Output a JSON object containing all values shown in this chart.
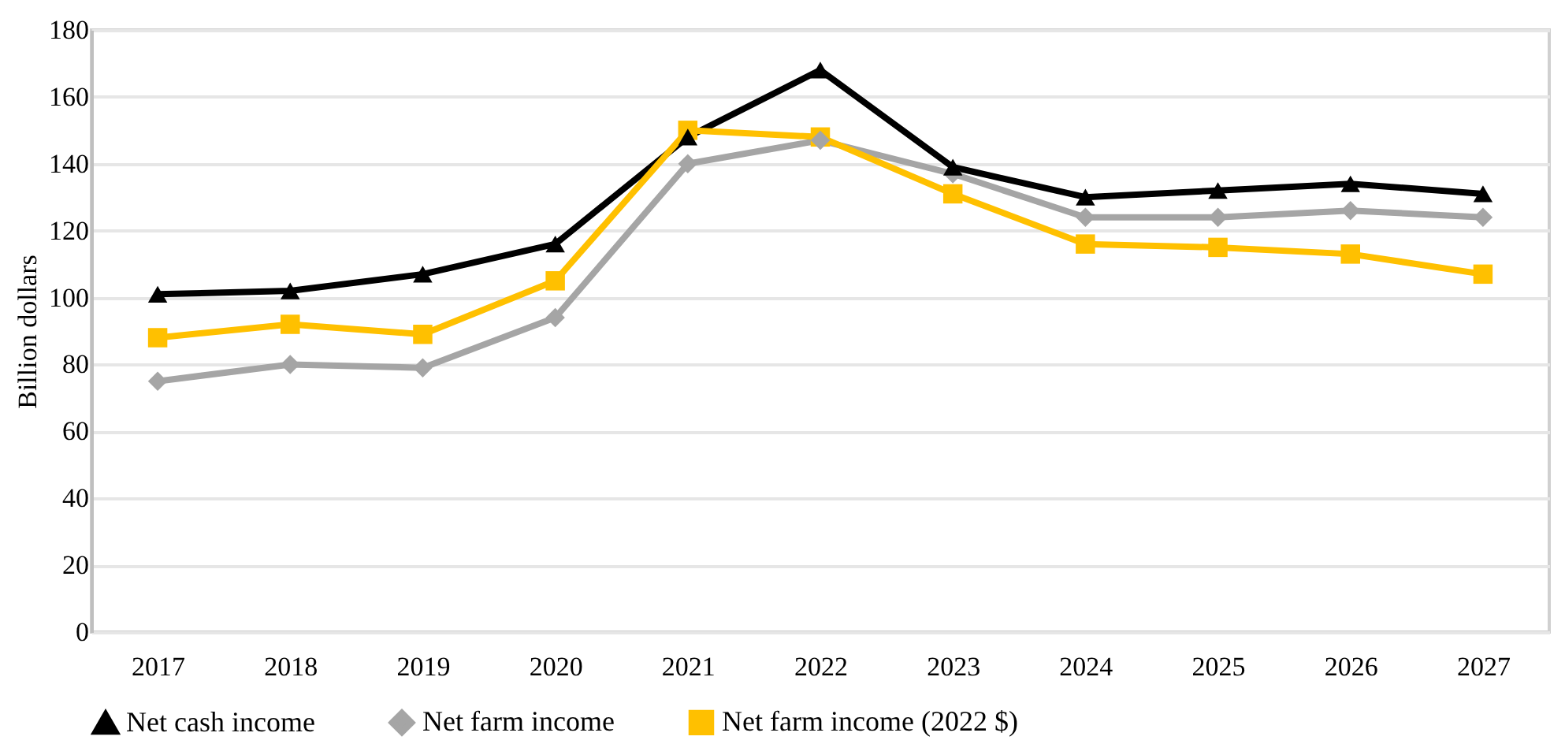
{
  "chart_data": {
    "type": "line",
    "ylabel": "Billion dollars",
    "categories": [
      "2017",
      "2018",
      "2019",
      "2020",
      "2021",
      "2022",
      "2023",
      "2024",
      "2025",
      "2026",
      "2027"
    ],
    "series": [
      {
        "name": "Net cash income",
        "color": "#000000",
        "marker": "triangle",
        "values": [
          101,
          102,
          107,
          116,
          148,
          168,
          139,
          130,
          132,
          134,
          131
        ]
      },
      {
        "name": "Net farm income",
        "color": "#a5a5a5",
        "marker": "diamond",
        "values": [
          75,
          80,
          79,
          94,
          140,
          147,
          137,
          124,
          124,
          126,
          124
        ]
      },
      {
        "name": "Net farm income (2022 $)",
        "color": "#ffc000",
        "marker": "square",
        "values": [
          88,
          92,
          89,
          105,
          150,
          148,
          131,
          116,
          115,
          113,
          107
        ]
      }
    ],
    "ylim": [
      0,
      180
    ],
    "yticks": [
      0,
      20,
      40,
      60,
      80,
      100,
      120,
      140,
      160,
      180
    ],
    "grid": "y",
    "legend": "bottom",
    "line_style": "solid"
  }
}
